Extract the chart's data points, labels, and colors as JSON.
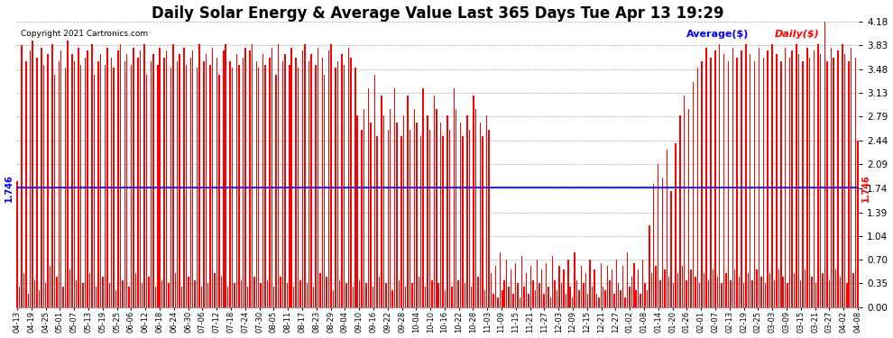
{
  "title": "Daily Solar Energy & Average Value Last 365 Days Tue Apr 13 19:29",
  "copyright": "Copyright 2021 Cartronics.com",
  "average_label": "Average($)",
  "daily_label": "Daily($)",
  "average_value": 1.746,
  "ylim": [
    0.0,
    4.18
  ],
  "yticks": [
    0.0,
    0.35,
    0.7,
    1.04,
    1.39,
    1.74,
    2.09,
    2.44,
    2.79,
    3.13,
    3.48,
    3.83,
    4.18
  ],
  "bar_color": "#ff0000",
  "avg_line_color": "#0000ff",
  "background_color": "#ffffff",
  "grid_color": "#999999",
  "title_fontsize": 12,
  "avg_label_color": "#0000ff",
  "daily_label_color": "#ff0000",
  "x_labels": [
    "04-13",
    "04-19",
    "04-25",
    "05-01",
    "05-07",
    "05-13",
    "05-19",
    "05-25",
    "06-06",
    "06-12",
    "06-18",
    "06-24",
    "06-30",
    "07-06",
    "07-12",
    "07-18",
    "07-24",
    "07-30",
    "08-05",
    "08-11",
    "08-17",
    "08-23",
    "08-29",
    "09-04",
    "09-10",
    "09-16",
    "09-22",
    "09-28",
    "10-04",
    "10-10",
    "10-16",
    "10-22",
    "10-28",
    "11-03",
    "11-09",
    "11-15",
    "11-21",
    "11-27",
    "12-03",
    "12-09",
    "12-15",
    "12-21",
    "12-27",
    "01-02",
    "01-08",
    "01-14",
    "01-20",
    "01-26",
    "02-01",
    "02-07",
    "02-13",
    "02-19",
    "02-25",
    "03-03",
    "03-09",
    "03-15",
    "03-21",
    "03-27",
    "04-02",
    "04-08"
  ],
  "values": [
    1.85,
    0.3,
    3.83,
    0.5,
    3.6,
    0.2,
    3.75,
    3.9,
    0.4,
    3.65,
    0.25,
    3.8,
    3.55,
    0.35,
    3.7,
    0.6,
    3.85,
    3.4,
    0.45,
    3.6,
    3.75,
    0.3,
    3.5,
    3.9,
    0.55,
    3.7,
    3.6,
    0.4,
    3.8,
    3.55,
    0.35,
    3.65,
    3.75,
    0.5,
    3.85,
    3.4,
    0.3,
    3.6,
    3.7,
    0.45,
    3.55,
    3.8,
    0.35,
    3.65,
    3.5,
    0.25,
    3.75,
    3.85,
    0.4,
    3.6,
    3.7,
    0.3,
    3.55,
    3.8,
    0.5,
    3.65,
    3.75,
    0.35,
    3.85,
    3.4,
    0.45,
    3.6,
    3.7,
    0.3,
    3.55,
    3.8,
    0.4,
    3.65,
    3.75,
    0.35,
    3.5,
    3.85,
    0.5,
    3.6,
    3.7,
    0.3,
    3.8,
    3.55,
    0.45,
    3.65,
    3.75,
    0.4,
    3.5,
    3.85,
    0.3,
    3.6,
    3.7,
    0.35,
    3.55,
    3.8,
    0.5,
    3.65,
    3.4,
    0.45,
    3.75,
    3.85,
    0.3,
    3.6,
    3.5,
    0.35,
    3.7,
    3.55,
    0.4,
    3.65,
    3.8,
    0.3,
    3.75,
    3.85,
    0.45,
    3.6,
    3.5,
    0.35,
    3.7,
    3.55,
    0.4,
    3.65,
    3.8,
    0.3,
    3.4,
    3.85,
    0.45,
    3.6,
    3.7,
    0.35,
    3.55,
    3.8,
    0.3,
    3.65,
    3.5,
    0.4,
    3.75,
    3.85,
    0.35,
    3.6,
    3.7,
    0.3,
    3.55,
    3.8,
    0.5,
    3.65,
    3.4,
    0.45,
    3.75,
    3.85,
    0.25,
    3.5,
    3.6,
    0.4,
    3.7,
    3.55,
    0.35,
    3.8,
    3.65,
    0.3,
    3.5,
    2.8,
    0.4,
    2.6,
    2.9,
    0.35,
    3.2,
    2.7,
    0.3,
    3.4,
    2.5,
    0.45,
    3.1,
    2.8,
    0.35,
    2.6,
    2.9,
    0.25,
    3.2,
    2.7,
    0.4,
    2.5,
    2.8,
    0.3,
    3.1,
    2.6,
    0.35,
    2.9,
    2.7,
    0.45,
    2.5,
    3.2,
    0.3,
    2.8,
    2.6,
    0.4,
    3.1,
    2.9,
    0.35,
    2.7,
    2.5,
    0.25,
    2.8,
    2.6,
    0.3,
    3.2,
    2.9,
    0.4,
    2.7,
    2.5,
    0.35,
    2.8,
    2.6,
    0.3,
    3.1,
    2.9,
    0.45,
    2.7,
    2.5,
    0.25,
    2.8,
    2.6,
    0.5,
    0.2,
    0.6,
    0.15,
    0.8,
    0.25,
    0.4,
    0.7,
    0.3,
    0.55,
    0.2,
    0.65,
    0.35,
    0.15,
    0.75,
    0.3,
    0.5,
    0.2,
    0.6,
    0.4,
    0.25,
    0.7,
    0.35,
    0.55,
    0.2,
    0.65,
    0.3,
    0.15,
    0.75,
    0.4,
    0.25,
    0.6,
    0.35,
    0.55,
    0.2,
    0.7,
    0.3,
    0.15,
    0.8,
    0.4,
    0.25,
    0.6,
    0.35,
    0.5,
    0.2,
    0.7,
    0.3,
    0.55,
    0.2,
    0.15,
    0.65,
    0.3,
    0.25,
    0.6,
    0.4,
    0.55,
    0.2,
    0.7,
    0.35,
    0.25,
    0.6,
    0.15,
    0.8,
    0.3,
    0.45,
    0.65,
    0.25,
    0.55,
    0.2,
    0.7,
    0.35,
    0.25,
    1.2,
    0.5,
    1.8,
    0.6,
    2.1,
    0.4,
    1.9,
    0.55,
    2.3,
    0.45,
    1.7,
    0.35,
    2.4,
    0.5,
    2.8,
    0.6,
    3.1,
    0.4,
    2.9,
    0.55,
    3.3,
    0.45,
    3.5,
    0.35,
    3.6,
    0.5,
    3.8,
    0.4,
    3.65,
    0.55,
    3.75,
    0.45,
    3.85,
    0.35,
    3.7,
    0.5,
    3.6,
    0.4,
    3.8,
    0.55,
    3.65,
    0.45,
    3.75,
    0.35,
    3.85,
    0.5,
    3.7,
    0.4,
    3.6,
    0.55,
    3.8,
    0.45,
    3.65,
    0.35,
    3.75,
    0.5,
    3.85,
    0.4,
    3.7,
    0.55,
    3.6,
    0.45,
    3.8,
    0.35,
    3.65,
    3.75,
    0.5,
    3.85,
    3.7,
    0.4,
    3.6,
    0.55,
    3.8,
    3.65,
    0.45,
    3.75,
    0.35,
    3.85,
    3.7,
    0.5,
    4.18,
    3.6,
    0.4,
    3.8,
    3.65,
    0.55,
    3.75,
    0.45,
    3.85,
    3.7,
    0.35,
    3.6,
    3.8,
    0.5,
    3.65,
    2.44
  ]
}
